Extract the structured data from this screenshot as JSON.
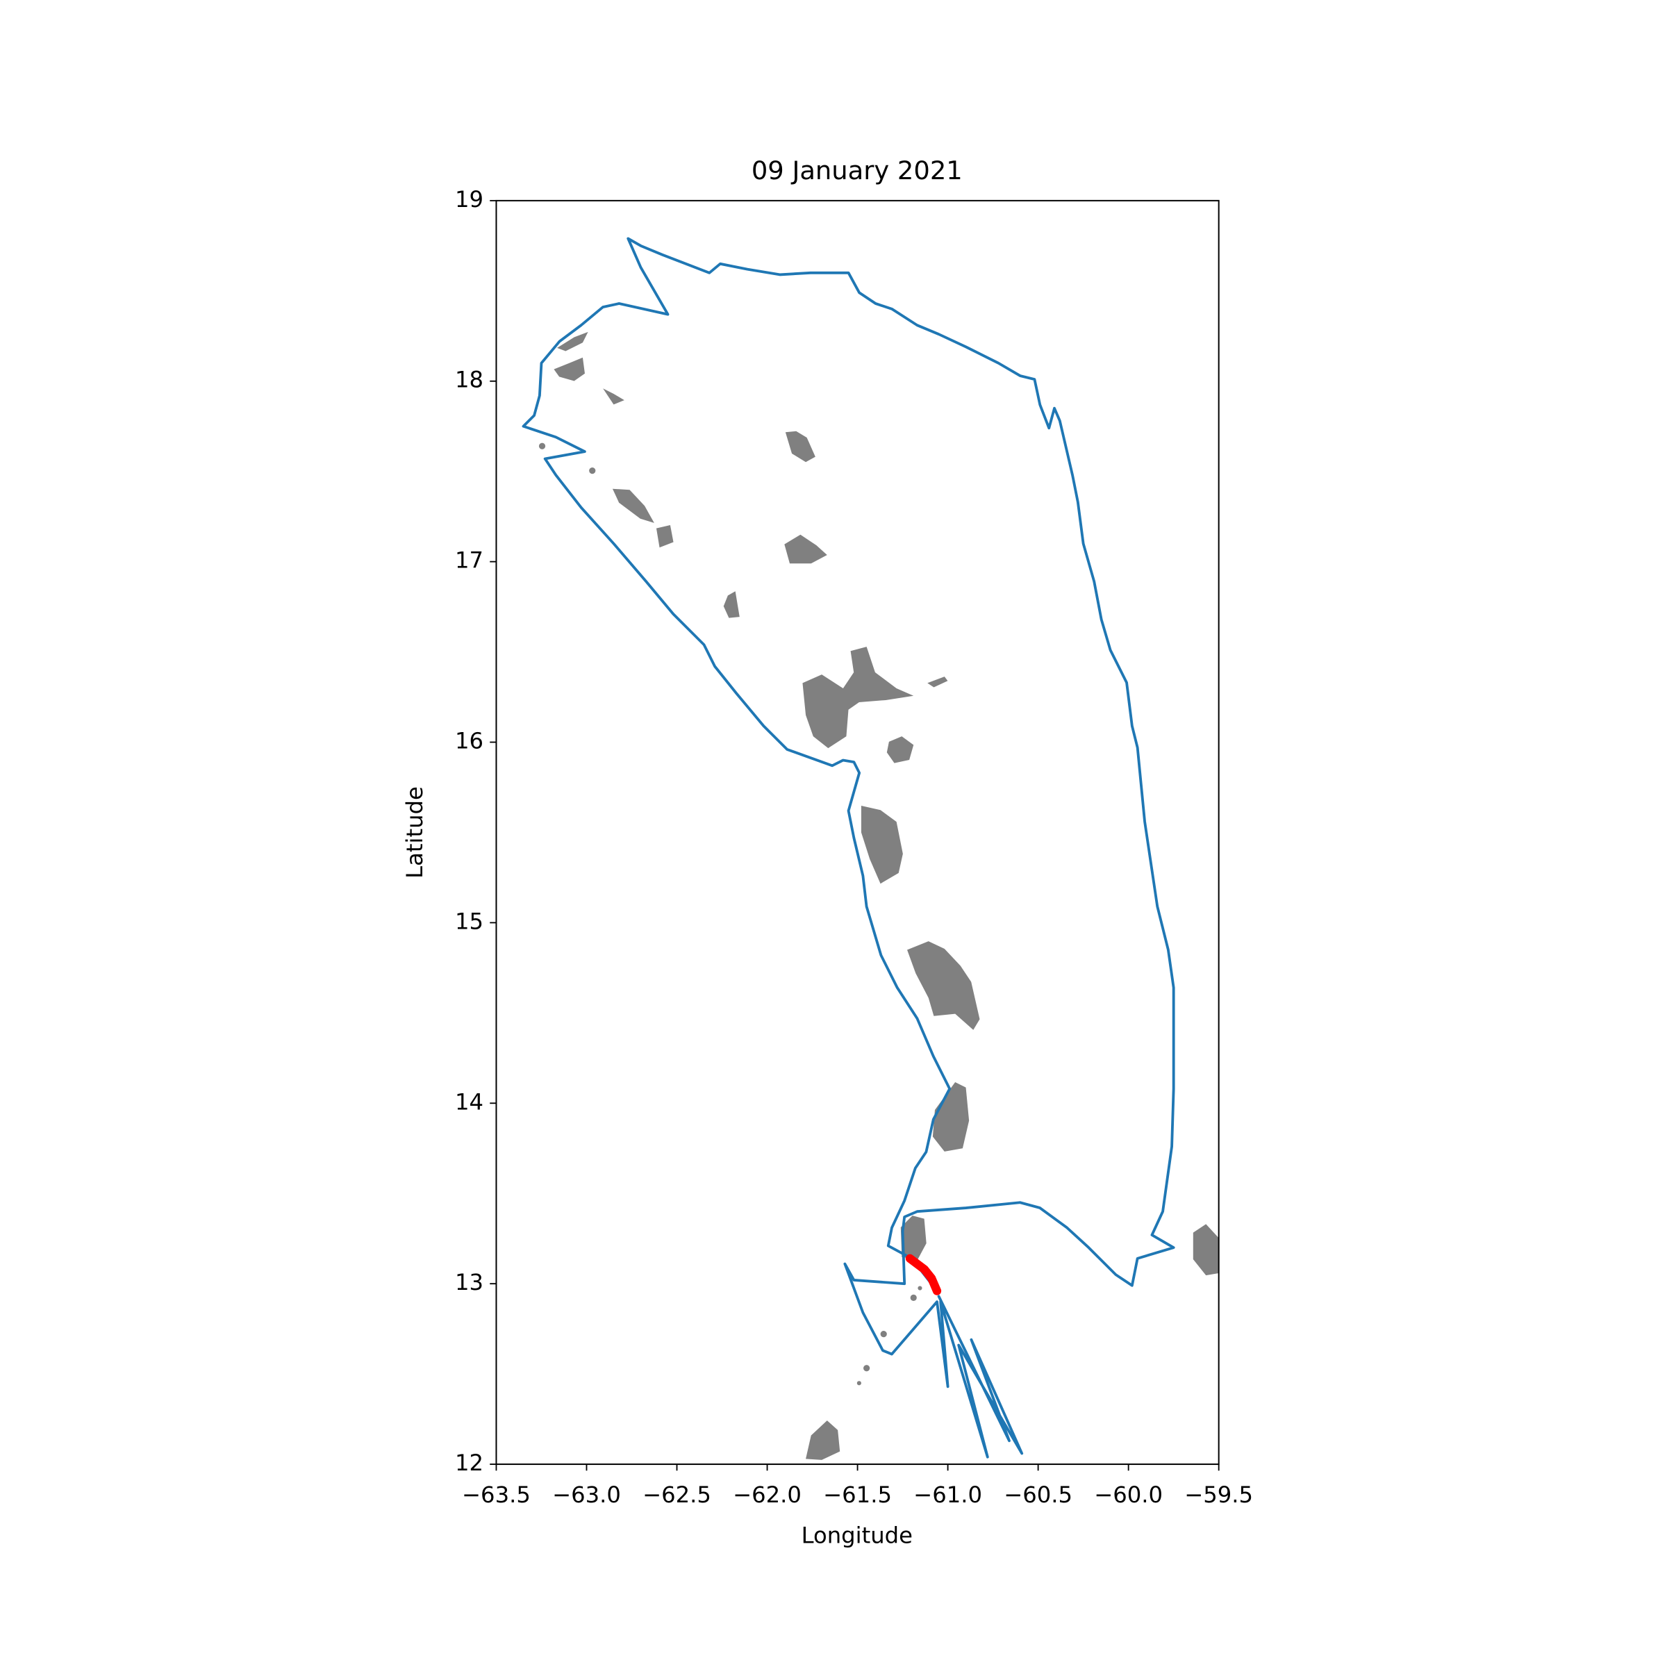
{
  "chart_data": {
    "type": "line",
    "title": "09 January 2021",
    "x_label": "Longitude",
    "y_label": "Latitude",
    "xlim": [
      -63.5,
      -59.5
    ],
    "ylim": [
      12,
      19
    ],
    "xticks": [
      {
        "value": -63.5,
        "label": "−63.5"
      },
      {
        "value": -63.0,
        "label": "−63.0"
      },
      {
        "value": -62.5,
        "label": "−62.5"
      },
      {
        "value": -62.0,
        "label": "−62.0"
      },
      {
        "value": -61.5,
        "label": "−61.5"
      },
      {
        "value": -61.0,
        "label": "−61.0"
      },
      {
        "value": -60.5,
        "label": "−60.5"
      },
      {
        "value": -60.0,
        "label": "−60.0"
      },
      {
        "value": -59.5,
        "label": "−59.5"
      }
    ],
    "yticks": [
      12,
      13,
      14,
      15,
      16,
      17,
      18,
      19
    ],
    "grid": false,
    "series": [
      {
        "color": "#1f77b4",
        "width": 2.5,
        "x": [
          -61.06,
          -61.2,
          -61.33,
          -61.31,
          -61.24,
          -61.18,
          -61.12,
          -61.08,
          -60.99,
          -61.08,
          -61.17,
          -61.28,
          -61.37,
          -61.45,
          -61.47,
          -61.52,
          -61.55,
          -61.49,
          -61.52,
          -61.58,
          -61.64,
          -61.89,
          -62.02,
          -62.17,
          -62.29,
          -62.35,
          -62.52,
          -62.67,
          -62.85,
          -63.03,
          -63.17,
          -63.23,
          -63.01,
          -63.17,
          -63.35,
          -63.29,
          -63.26,
          -63.25,
          -63.15,
          -63.03,
          -62.91,
          -62.82,
          -62.55,
          -62.7,
          -62.77,
          -62.7,
          -62.58,
          -62.32,
          -62.26,
          -62.11,
          -61.93,
          -61.76,
          -61.55,
          -61.49,
          -61.4,
          -61.31,
          -61.17,
          -61.05,
          -60.9,
          -60.72,
          -60.6,
          -60.52,
          -60.49,
          -60.44,
          -60.41,
          -60.38,
          -60.31,
          -60.28,
          -60.25,
          -60.19,
          -60.15,
          -60.1,
          -60.01,
          -59.98,
          -59.95,
          -59.91,
          -59.84,
          -59.78,
          -59.75,
          -59.75,
          -59.76,
          -59.81,
          -59.87,
          -59.75,
          -59.95,
          -59.98,
          -60.07,
          -60.22,
          -60.34,
          -60.49,
          -60.6,
          -60.9,
          -61.17,
          -61.24,
          -61.25,
          -61.24,
          -61.52,
          -61.57,
          -61.47,
          -61.36,
          -61.31,
          -61.06,
          -61.0,
          -61.04,
          -60.78,
          -60.94,
          -60.59,
          -60.87,
          -60.66,
          -61.05
        ],
        "values": [
          12.96,
          13.14,
          13.21,
          13.31,
          13.46,
          13.64,
          13.73,
          13.91,
          14.08,
          14.26,
          14.47,
          14.64,
          14.82,
          15.09,
          15.26,
          15.47,
          15.62,
          15.83,
          15.89,
          15.9,
          15.87,
          15.96,
          16.09,
          16.27,
          16.42,
          16.54,
          16.71,
          16.89,
          17.1,
          17.3,
          17.48,
          17.57,
          17.61,
          17.69,
          17.75,
          17.81,
          17.92,
          18.1,
          18.22,
          18.31,
          18.41,
          18.43,
          18.37,
          18.63,
          18.79,
          18.75,
          18.7,
          18.6,
          18.65,
          18.62,
          18.59,
          18.6,
          18.6,
          18.49,
          18.43,
          18.4,
          18.31,
          18.26,
          18.19,
          18.1,
          18.03,
          18.01,
          17.87,
          17.74,
          17.85,
          17.78,
          17.48,
          17.33,
          17.1,
          16.89,
          16.68,
          16.51,
          16.33,
          16.09,
          15.97,
          15.56,
          15.09,
          14.85,
          14.64,
          14.08,
          13.76,
          13.4,
          13.27,
          13.2,
          13.14,
          12.99,
          13.05,
          13.2,
          13.31,
          13.42,
          13.45,
          13.42,
          13.4,
          13.37,
          13.29,
          13.0,
          13.02,
          13.11,
          12.84,
          12.63,
          12.61,
          12.9,
          12.43,
          12.9,
          12.04,
          12.66,
          12.06,
          12.69,
          12.13,
          12.93
        ]
      },
      {
        "color": "#ff0000",
        "width": 8,
        "x": [
          -61.21,
          -61.13,
          -61.09,
          -61.06
        ],
        "values": [
          13.14,
          13.08,
          13.03,
          12.96
        ]
      }
    ]
  }
}
